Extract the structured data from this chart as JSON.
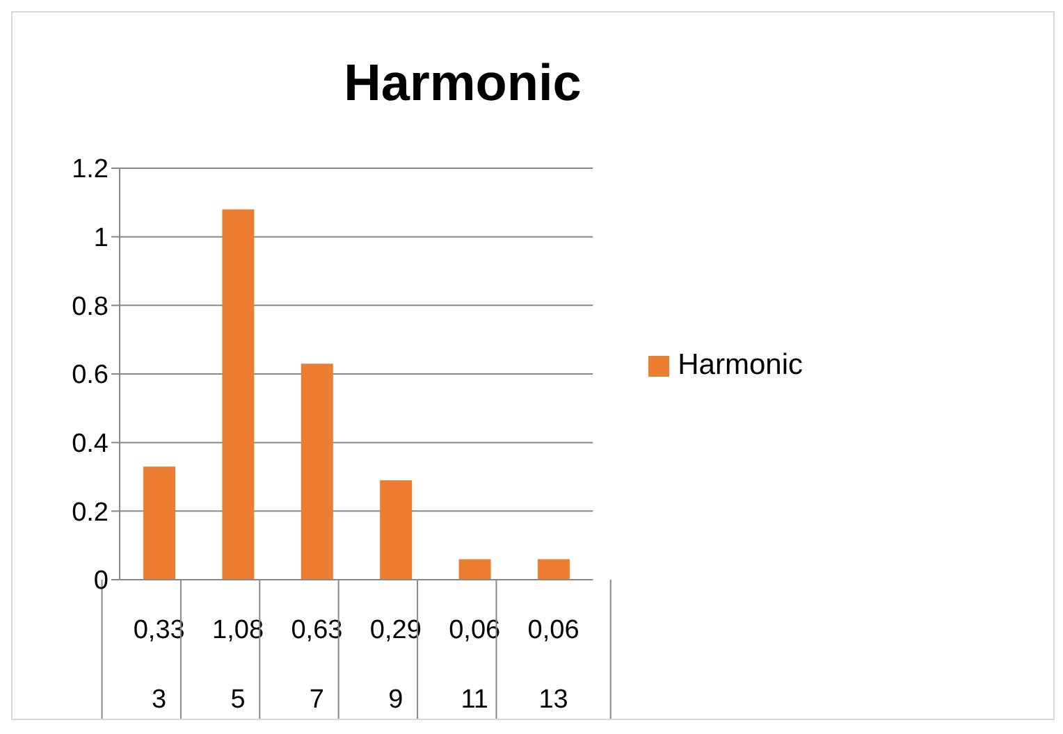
{
  "chart_data": {
    "type": "bar",
    "title": "Harmonic",
    "categories": [
      "3",
      "5",
      "7",
      "9",
      "11",
      "13"
    ],
    "series": [
      {
        "name": "Harmonic",
        "color": "#ed7d31",
        "values": [
          0.33,
          1.08,
          0.63,
          0.29,
          0.06,
          0.06
        ],
        "value_labels": [
          "0,33",
          "1,08",
          "0,63",
          "0,29",
          "0,06",
          "0,06"
        ]
      }
    ],
    "ylim": [
      0,
      1.2
    ],
    "yticks": [
      0,
      0.2,
      0.4,
      0.6,
      0.8,
      1,
      1.2
    ],
    "grid": "y",
    "legend": "right"
  }
}
